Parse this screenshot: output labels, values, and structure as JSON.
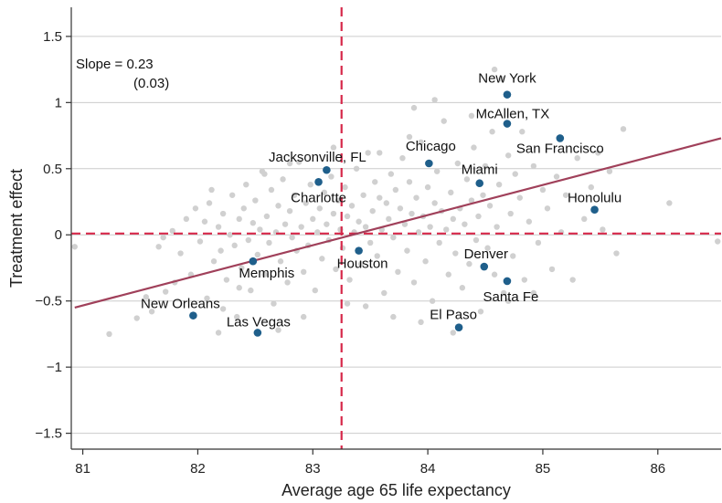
{
  "chart_data": {
    "type": "scatter",
    "xlabel": "Average age 65 life expectancy",
    "ylabel": "Treatment effect",
    "xlim": [
      80.9,
      86.55
    ],
    "ylim": [
      -1.62,
      1.72
    ],
    "xticks": [
      81,
      82,
      83,
      84,
      85,
      86
    ],
    "yticks": [
      -1.5,
      -1,
      -0.5,
      0,
      0.5,
      1,
      1.5
    ],
    "ytick_labels": [
      "−1.5",
      "−1",
      "−0.5",
      "0",
      "0.5",
      "1",
      "1.5"
    ],
    "grid": "horizontal",
    "annotation": {
      "line1": "Slope = 0.23",
      "line2": "(0.03)"
    },
    "reference_lines": {
      "vertical_x": 83.25,
      "horizontal_y": 0.01
    },
    "fit_line": {
      "x": [
        80.93,
        86.55
      ],
      "y": [
        -0.55,
        0.73
      ]
    },
    "colors": {
      "highlight": "#1f5f8b",
      "background_points": "#d0d0d0",
      "fit_line": "#a0405a",
      "reference_line": "#d6284a",
      "grid": "#cccccc"
    },
    "highlighted": [
      {
        "name": "New York",
        "x": 84.69,
        "y": 1.06
      },
      {
        "name": "McAllen, TX",
        "x": 84.69,
        "y": 0.84
      },
      {
        "name": "San Francisco",
        "x": 85.15,
        "y": 0.73
      },
      {
        "name": "Chicago",
        "x": 84.01,
        "y": 0.54
      },
      {
        "name": "Jacksonville, FL",
        "x": 83.12,
        "y": 0.49
      },
      {
        "name": "Miami",
        "x": 84.45,
        "y": 0.39
      },
      {
        "name": "Charlotte",
        "x": 83.05,
        "y": 0.4
      },
      {
        "name": "Honolulu",
        "x": 85.45,
        "y": 0.19
      },
      {
        "name": "Houston",
        "x": 83.4,
        "y": -0.12
      },
      {
        "name": "Denver",
        "x": 84.49,
        "y": -0.24
      },
      {
        "name": "Memphis",
        "x": 82.48,
        "y": -0.2
      },
      {
        "name": "Santa Fe",
        "x": 84.69,
        "y": -0.35
      },
      {
        "name": "New Orleans",
        "x": 81.96,
        "y": -0.61
      },
      {
        "name": "Las Vegas",
        "x": 82.52,
        "y": -0.74
      },
      {
        "name": "El Paso",
        "x": 84.27,
        "y": -0.7
      }
    ],
    "background_points": [
      [
        80.93,
        -0.09
      ],
      [
        81.23,
        -0.75
      ],
      [
        81.47,
        -0.63
      ],
      [
        81.55,
        -0.47
      ],
      [
        81.72,
        -0.43
      ],
      [
        81.8,
        -0.36
      ],
      [
        81.66,
        -0.09
      ],
      [
        81.7,
        -0.02
      ],
      [
        81.78,
        0.03
      ],
      [
        81.85,
        -0.14
      ],
      [
        81.9,
        0.12
      ],
      [
        81.94,
        -0.3
      ],
      [
        81.98,
        0.2
      ],
      [
        82.02,
        -0.05
      ],
      [
        82.06,
        0.1
      ],
      [
        82.08,
        -0.48
      ],
      [
        82.1,
        0.24
      ],
      [
        82.14,
        -0.2
      ],
      [
        82.18,
        0.06
      ],
      [
        82.2,
        -0.12
      ],
      [
        82.22,
        0.16
      ],
      [
        82.25,
        -0.34
      ],
      [
        82.28,
        0.0
      ],
      [
        82.3,
        0.3
      ],
      [
        82.32,
        -0.08
      ],
      [
        82.34,
        -0.62
      ],
      [
        82.36,
        0.12
      ],
      [
        82.38,
        -0.25
      ],
      [
        82.4,
        0.2
      ],
      [
        82.42,
        0.38
      ],
      [
        82.44,
        -0.04
      ],
      [
        82.46,
        -0.42
      ],
      [
        82.48,
        0.09
      ],
      [
        82.5,
        0.26
      ],
      [
        82.52,
        -0.15
      ],
      [
        82.54,
        0.04
      ],
      [
        82.56,
        0.48
      ],
      [
        82.58,
        -0.3
      ],
      [
        82.6,
        0.14
      ],
      [
        82.62,
        -0.06
      ],
      [
        82.64,
        0.34
      ],
      [
        82.66,
        -0.52
      ],
      [
        82.68,
        0.02
      ],
      [
        82.7,
        0.22
      ],
      [
        82.72,
        -0.2
      ],
      [
        82.74,
        0.42
      ],
      [
        82.76,
        0.08
      ],
      [
        82.78,
        -0.36
      ],
      [
        82.8,
        0.18
      ],
      [
        82.82,
        -0.02
      ],
      [
        82.84,
        0.3
      ],
      [
        82.86,
        -0.12
      ],
      [
        82.88,
        0.55
      ],
      [
        82.9,
        0.06
      ],
      [
        82.92,
        -0.28
      ],
      [
        82.94,
        0.24
      ],
      [
        82.96,
        -0.08
      ],
      [
        82.98,
        0.38
      ],
      [
        83.0,
        0.12
      ],
      [
        83.02,
        -0.42
      ],
      [
        83.04,
        0.02
      ],
      [
        83.06,
        0.2
      ],
      [
        83.08,
        -0.18
      ],
      [
        83.1,
        0.32
      ],
      [
        83.12,
        0.08
      ],
      [
        83.14,
        -0.04
      ],
      [
        83.16,
        0.44
      ],
      [
        83.18,
        0.16
      ],
      [
        83.2,
        -0.26
      ],
      [
        83.22,
        0.26
      ],
      [
        83.24,
        0.04
      ],
      [
        83.26,
        -0.1
      ],
      [
        83.28,
        0.36
      ],
      [
        83.3,
        0.14
      ],
      [
        83.32,
        -0.34
      ],
      [
        83.34,
        0.22
      ],
      [
        83.36,
        0.02
      ],
      [
        83.38,
        0.5
      ],
      [
        83.4,
        0.1
      ],
      [
        83.42,
        -0.22
      ],
      [
        83.44,
        0.3
      ],
      [
        83.46,
        0.06
      ],
      [
        83.48,
        0.62
      ],
      [
        83.5,
        -0.06
      ],
      [
        83.52,
        0.18
      ],
      [
        83.54,
        0.4
      ],
      [
        83.56,
        -0.16
      ],
      [
        83.58,
        0.28
      ],
      [
        83.6,
        0.04
      ],
      [
        83.62,
        -0.44
      ],
      [
        83.64,
        0.24
      ],
      [
        83.66,
        0.12
      ],
      [
        83.68,
        0.46
      ],
      [
        83.7,
        -0.02
      ],
      [
        83.72,
        0.34
      ],
      [
        83.74,
        -0.28
      ],
      [
        83.76,
        0.2
      ],
      [
        83.78,
        0.58
      ],
      [
        83.8,
        0.08
      ],
      [
        83.82,
        -0.12
      ],
      [
        83.84,
        0.4
      ],
      [
        83.86,
        0.16
      ],
      [
        83.88,
        -0.36
      ],
      [
        83.9,
        0.28
      ],
      [
        83.92,
        0.02
      ],
      [
        83.94,
        0.7
      ],
      [
        83.96,
        0.14
      ],
      [
        83.98,
        -0.2
      ],
      [
        84.0,
        0.36
      ],
      [
        84.02,
        0.06
      ],
      [
        84.04,
        -0.5
      ],
      [
        84.06,
        0.24
      ],
      [
        84.08,
        0.48
      ],
      [
        84.1,
        -0.06
      ],
      [
        84.12,
        0.18
      ],
      [
        84.14,
        0.86
      ],
      [
        84.16,
        0.04
      ],
      [
        84.18,
        -0.3
      ],
      [
        84.2,
        0.32
      ],
      [
        84.22,
        0.12
      ],
      [
        84.24,
        -0.14
      ],
      [
        84.26,
        0.54
      ],
      [
        84.28,
        0.2
      ],
      [
        84.3,
        -0.4
      ],
      [
        84.32,
        0.08
      ],
      [
        84.34,
        0.42
      ],
      [
        84.36,
        -0.22
      ],
      [
        84.38,
        0.26
      ],
      [
        84.4,
        0.66
      ],
      [
        84.42,
        -0.04
      ],
      [
        84.44,
        0.14
      ],
      [
        84.46,
        -0.58
      ],
      [
        84.48,
        0.3
      ],
      [
        84.5,
        0.52
      ],
      [
        84.52,
        -0.1
      ],
      [
        84.54,
        0.22
      ],
      [
        84.56,
        0.78
      ],
      [
        84.58,
        -0.3
      ],
      [
        84.6,
        0.06
      ],
      [
        84.62,
        0.38
      ],
      [
        84.64,
        1.18
      ],
      [
        84.66,
        -0.44
      ],
      [
        84.7,
        0.6
      ],
      [
        84.72,
        0.16
      ],
      [
        84.74,
        -0.16
      ],
      [
        84.76,
        0.46
      ],
      [
        84.8,
        0.28
      ],
      [
        84.84,
        -0.34
      ],
      [
        84.88,
        0.1
      ],
      [
        84.92,
        0.52
      ],
      [
        84.96,
        -0.06
      ],
      [
        85.0,
        0.34
      ],
      [
        85.04,
        0.2
      ],
      [
        85.08,
        -0.26
      ],
      [
        85.12,
        0.44
      ],
      [
        85.16,
        0.02
      ],
      [
        85.2,
        0.3
      ],
      [
        85.26,
        -0.34
      ],
      [
        85.3,
        0.58
      ],
      [
        85.36,
        0.12
      ],
      [
        85.42,
        0.36
      ],
      [
        85.48,
        0.62
      ],
      [
        85.52,
        0.04
      ],
      [
        85.58,
        0.48
      ],
      [
        85.64,
        -0.14
      ],
      [
        85.7,
        0.8
      ],
      [
        86.1,
        0.24
      ],
      [
        86.52,
        -0.05
      ],
      [
        82.12,
        0.34
      ],
      [
        82.58,
        0.46
      ],
      [
        82.36,
        -0.4
      ],
      [
        82.8,
        0.54
      ],
      [
        82.22,
        -0.56
      ],
      [
        83.18,
        0.66
      ],
      [
        83.58,
        0.62
      ],
      [
        83.84,
        0.74
      ],
      [
        84.06,
        1.02
      ],
      [
        83.88,
        0.96
      ],
      [
        84.58,
        1.25
      ],
      [
        84.38,
        0.9
      ],
      [
        84.82,
        0.78
      ],
      [
        83.46,
        -0.54
      ],
      [
        83.94,
        -0.66
      ],
      [
        84.22,
        -0.74
      ],
      [
        83.7,
        -0.62
      ],
      [
        83.3,
        -0.52
      ],
      [
        82.92,
        -0.62
      ],
      [
        82.7,
        -0.72
      ],
      [
        82.18,
        -0.74
      ],
      [
        81.6,
        -0.58
      ],
      [
        84.7,
        -0.5
      ],
      [
        84.92,
        -0.44
      ]
    ]
  }
}
